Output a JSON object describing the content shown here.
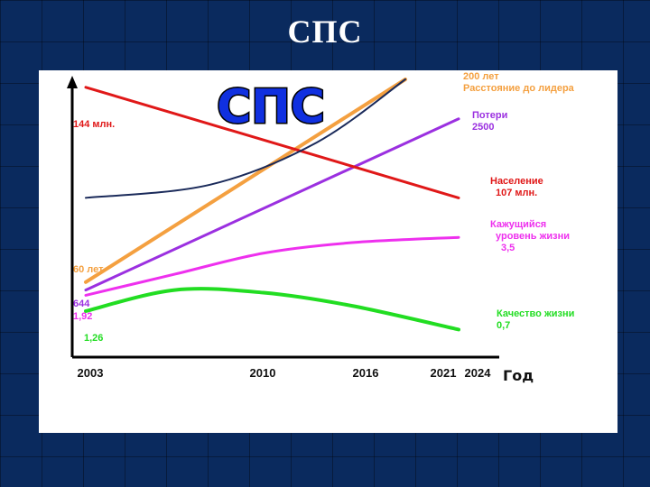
{
  "slide": {
    "title": "СПС"
  },
  "chart_data": {
    "type": "line",
    "title": "СПС",
    "xlabel": "Год",
    "ylabel": "",
    "x_ticks": [
      "2003",
      "2010",
      "2016",
      "2021",
      "2024"
    ],
    "xlim": [
      2003,
      2024
    ],
    "ylim": [
      0,
      100
    ],
    "grid": false,
    "series": [
      {
        "name": "Расстояние до лидера",
        "color": "#f4a040",
        "points": [
          [
            2003,
            23
          ],
          [
            2021,
            100
          ]
        ],
        "start_label": "60 лет",
        "end_label": "200 лет\nРасстояние до лидера"
      },
      {
        "name": "Потери",
        "color": "#9b30e0",
        "points": [
          [
            2003,
            20
          ],
          [
            2024,
            85
          ]
        ],
        "start_label": "644",
        "end_label": "Потери\n2500"
      },
      {
        "name": "Население",
        "color": "#e01818",
        "points": [
          [
            2003,
            97
          ],
          [
            2024,
            55
          ]
        ],
        "start_label": "144 млн.",
        "end_label": "Население\n107 млн."
      },
      {
        "name": "Кажущийся уровень жизни",
        "color": "#ee30ee",
        "points": [
          [
            2003,
            18
          ],
          [
            2008,
            26
          ],
          [
            2013,
            34
          ],
          [
            2018,
            38
          ],
          [
            2024,
            40
          ]
        ],
        "start_label": "1,92",
        "end_label": "Кажущийся\nуровень жизни\n3,5"
      },
      {
        "name": "Качество жизни",
        "color": "#22dd22",
        "points": [
          [
            2003,
            12
          ],
          [
            2008,
            20
          ],
          [
            2013,
            19
          ],
          [
            2018,
            14
          ],
          [
            2024,
            5
          ]
        ],
        "start_label": "1,26",
        "end_label": "Качество жизни\n0,7"
      },
      {
        "name": "",
        "color": "#1a2a5a",
        "points": [
          [
            2003,
            55
          ],
          [
            2010,
            60
          ],
          [
            2016,
            76
          ],
          [
            2021,
            100
          ]
        ],
        "start_label": "",
        "end_label": ""
      }
    ]
  }
}
